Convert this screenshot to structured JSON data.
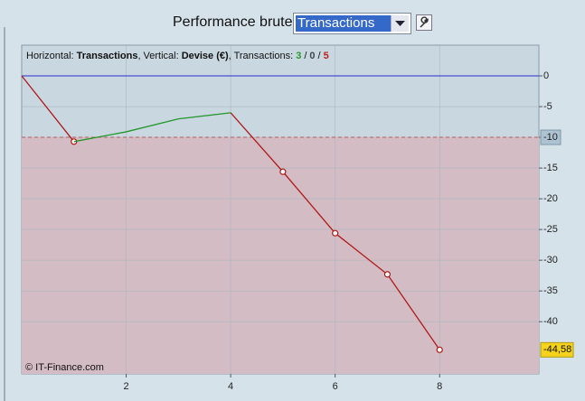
{
  "header": {
    "label": "Performance brute",
    "selected": "Transactions"
  },
  "chart_data": {
    "type": "line",
    "info": {
      "h_label": "Horizontal:",
      "h_value": "Transactions",
      "v_label": ", Vertical:",
      "v_value": "Devise (€)",
      "t_label": ", Transactions:",
      "wins": 3,
      "sep1": "/",
      "even": 0,
      "sep2": "/",
      "losses": 5
    },
    "credit": "© IT-Finance.com",
    "x": [
      0,
      1,
      2,
      3,
      4,
      5,
      6,
      7,
      8
    ],
    "series": [
      {
        "color": "#b01818",
        "values": [
          0,
          -10.7,
          null,
          null,
          -6,
          -15.6,
          -25.6,
          -32.3,
          -44.58
        ],
        "markers": [
          false,
          true,
          false,
          false,
          false,
          true,
          true,
          true,
          true
        ],
        "value_labels": [
          null,
          null,
          null,
          null,
          null,
          null,
          null,
          null,
          "-44,58"
        ]
      },
      {
        "color": "#22962a",
        "values": [
          null,
          -10.7,
          -9.1,
          -7,
          -6,
          null,
          null,
          null,
          null
        ]
      }
    ],
    "xlim": [
      0,
      9.9
    ],
    "ylim": [
      -48.5,
      5
    ],
    "xticks": [
      2,
      4,
      6,
      8
    ],
    "yticks": [
      0,
      -5,
      -10,
      -15,
      -20,
      -25,
      -30,
      -35,
      -40
    ],
    "zero_line": {
      "value": 0,
      "color": "#2a2ad0"
    },
    "threshold": {
      "value": -10,
      "color": "#c05a5a",
      "fill": "#d3bcc3"
    },
    "grid": true
  }
}
